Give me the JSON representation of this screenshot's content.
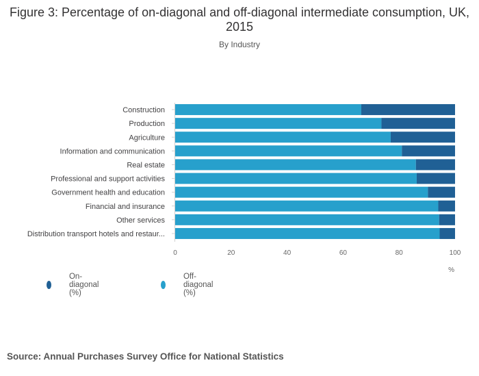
{
  "title": "Figure 3: Percentage of on-diagonal and off-diagonal intermediate consumption, UK, 2015",
  "subtitle": "By Industry",
  "source": "Source: Annual Purchases Survey Office for National Statistics",
  "legend": {
    "on_label": "On-diagonal (%)",
    "off_label": "Off-diagonal (%)"
  },
  "colors": {
    "on": "#206095",
    "off": "#27a0cc"
  },
  "chart_data": {
    "type": "bar",
    "orientation": "horizontal",
    "stacked": true,
    "categories": [
      "Construction",
      "Production",
      "Agriculture",
      "Information and communication",
      "Real estate",
      "Professional and support activities",
      "Government health and education",
      "Financial and insurance",
      "Other services",
      "Distribution transport hotels and restaur..."
    ],
    "series": [
      {
        "name": "Off-diagonal (%)",
        "values": [
          66.5,
          73.7,
          77.0,
          81.0,
          86.0,
          86.3,
          90.3,
          94.0,
          94.3,
          94.5
        ]
      },
      {
        "name": "On-diagonal (%)",
        "values": [
          33.5,
          26.3,
          23.0,
          19.0,
          14.0,
          13.7,
          9.7,
          6.0,
          5.7,
          5.5
        ]
      }
    ],
    "xlim": [
      0,
      100
    ],
    "xticks": [
      0,
      20,
      40,
      60,
      80,
      100
    ],
    "xlabel": "%",
    "legend_position": "bottom-left"
  }
}
